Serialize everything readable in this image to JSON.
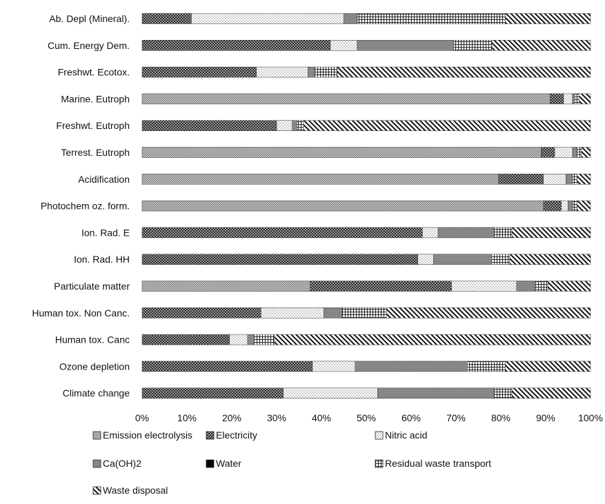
{
  "chart_data": {
    "type": "bar",
    "orientation": "horizontal",
    "stacked": true,
    "normalized_percent": true,
    "xlim": [
      0,
      100
    ],
    "x_tick_labels": [
      "0%",
      "10%",
      "20%",
      "30%",
      "40%",
      "50%",
      "60%",
      "70%",
      "80%",
      "90%",
      "100%"
    ],
    "grid": false,
    "legend_position": "bottom",
    "categories": [
      "Ab. Depl (Mineral).",
      "Cum. Energy Dem.",
      "Freshwt. Ecotox.",
      "Marine. Eutroph",
      "Freshwt. Eutroph",
      "Terrest. Eutroph",
      "Acidification",
      "Photochem oz. form.",
      "Ion. Rad. E",
      "Ion. Rad. HH",
      "Particulate matter",
      "Human tox. Non Canc.",
      "Human tox. Canc",
      "Ozone depletion",
      "Climate change"
    ],
    "series": [
      {
        "name": "Emission electrolysis",
        "pattern": "fine-hatch",
        "values": [
          0,
          0,
          0,
          91,
          0,
          89,
          79.5,
          89.5,
          0,
          0,
          37.5,
          0,
          0,
          0,
          0
        ]
      },
      {
        "name": "Electricity",
        "pattern": "checker",
        "values": [
          11,
          42,
          25.5,
          3,
          30,
          3,
          10,
          4,
          62.5,
          61.5,
          31.5,
          26.5,
          19.5,
          38,
          31.5
        ]
      },
      {
        "name": "Nitric acid",
        "pattern": "dots",
        "values": [
          34,
          6,
          11.5,
          2,
          3.5,
          4,
          5,
          1.5,
          3.5,
          3.5,
          14.5,
          14,
          4,
          9.5,
          21
        ]
      },
      {
        "name": "Ca(OH)2",
        "pattern": "dark-gray",
        "values": [
          3,
          21.5,
          1.5,
          0.5,
          1,
          1,
          1.5,
          1,
          12.5,
          13,
          4,
          4,
          1.5,
          25,
          26
        ]
      },
      {
        "name": "Water",
        "pattern": "solid-black",
        "values": [
          0,
          0,
          0,
          0,
          0,
          0,
          0,
          0,
          0,
          0,
          0,
          0,
          0,
          0,
          0
        ]
      },
      {
        "name": "Residual waste transport",
        "pattern": "grid",
        "values": [
          33,
          8.5,
          5,
          1,
          1.5,
          1,
          1,
          1,
          4,
          4,
          3,
          10,
          4.5,
          8.5,
          4
        ]
      },
      {
        "name": "Waste disposal",
        "pattern": "diagonal",
        "values": [
          19,
          22,
          56.5,
          2.5,
          64,
          2,
          3,
          3,
          17.5,
          18,
          9.5,
          45.5,
          70.5,
          19,
          17.5
        ]
      }
    ]
  }
}
